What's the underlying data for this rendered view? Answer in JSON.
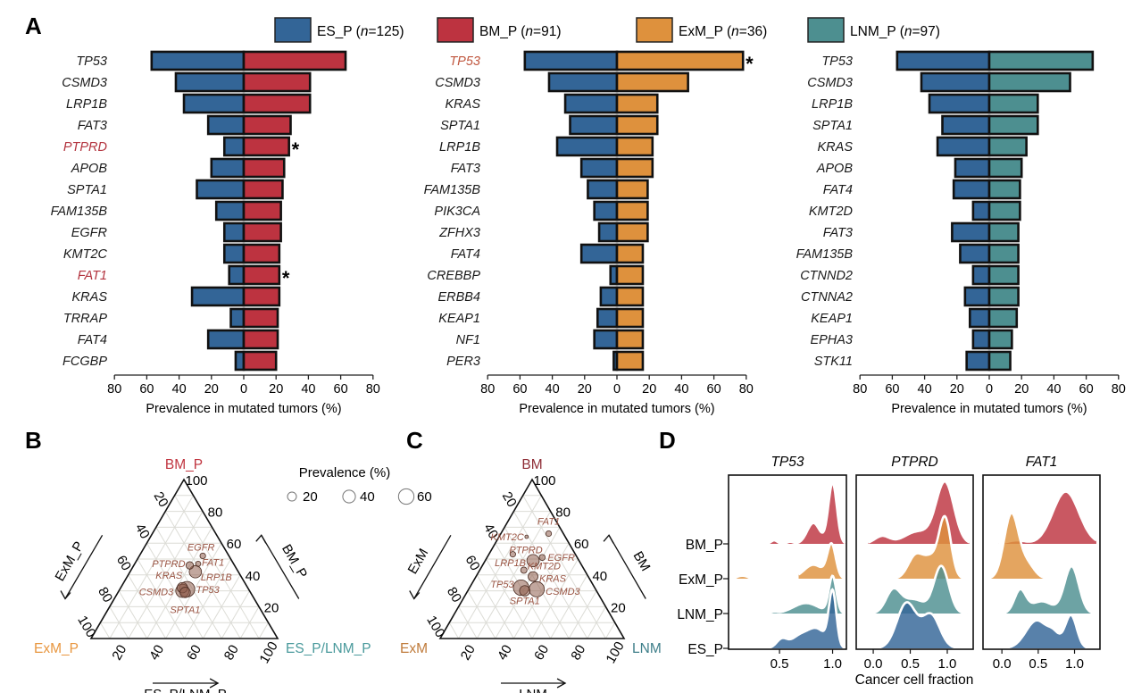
{
  "colors": {
    "ES_P": "#336597",
    "BM_P": "#BD3340",
    "ExM_P": "#DE913D",
    "LNM_P": "#4D8F90",
    "highlight": "#B3343F",
    "highlight2": "#C0573F",
    "ternary_label": "#9A5544",
    "ternary_point": "#8F5E4E"
  },
  "panel_letters": {
    "A": "A",
    "B": "B",
    "C": "C",
    "D": "D"
  },
  "legend": [
    {
      "key": "ES_P",
      "label": "ES_P (",
      "n_label": "n",
      "n_value": "=125)"
    },
    {
      "key": "BM_P",
      "label": "BM_P (",
      "n_label": "n",
      "n_value": "=91)"
    },
    {
      "key": "ExM_P",
      "label": "ExM_P (",
      "n_label": "n",
      "n_value": "=36)"
    },
    {
      "key": "LNM_P",
      "label": "LNM_P (",
      "n_label": "n",
      "n_value": "=97)"
    }
  ],
  "chart_data": [
    {
      "type": "bar",
      "orientation": "horizontal-diverging",
      "panel": "A1",
      "xlabel": "Prevalence in mutated tumors (%)",
      "xlim": [
        -80,
        80
      ],
      "xticks": [
        "80",
        "60",
        "40",
        "20",
        "0",
        "20",
        "40",
        "60",
        "80"
      ],
      "left_series": "ES_P",
      "right_series": "BM_P",
      "categories": [
        "TP53",
        "CSMD3",
        "LRP1B",
        "FAT3",
        "PTPRD",
        "APOB",
        "SPTA1",
        "FAM135B",
        "EGFR",
        "KMT2C",
        "FAT1",
        "KRAS",
        "TRRAP",
        "FAT4",
        "FCGBP"
      ],
      "left_values": [
        57,
        42,
        37,
        22,
        12,
        20,
        29,
        17,
        12,
        12,
        9,
        32,
        8,
        22,
        5
      ],
      "right_values": [
        63,
        41,
        41,
        29,
        28,
        25,
        24,
        23,
        23,
        22,
        22,
        22,
        21,
        21,
        20
      ],
      "significant": [
        "PTPRD",
        "FAT1"
      ],
      "significance_mark": "*"
    },
    {
      "type": "bar",
      "orientation": "horizontal-diverging",
      "panel": "A2",
      "xlabel": "Prevalence in mutated tumors (%)",
      "xlim": [
        -80,
        80
      ],
      "xticks": [
        "80",
        "60",
        "40",
        "20",
        "0",
        "20",
        "40",
        "60",
        "80"
      ],
      "left_series": "ES_P",
      "right_series": "ExM_P",
      "categories": [
        "TP53",
        "CSMD3",
        "KRAS",
        "SPTA1",
        "LRP1B",
        "FAT3",
        "FAM135B",
        "PIK3CA",
        "ZFHX3",
        "FAT4",
        "CREBBP",
        "ERBB4",
        "KEAP1",
        "NF1",
        "PER3"
      ],
      "left_values": [
        57,
        42,
        32,
        29,
        37,
        22,
        18,
        14,
        11,
        22,
        4,
        10,
        12,
        14,
        2
      ],
      "right_values": [
        78,
        44,
        25,
        25,
        22,
        22,
        19,
        19,
        19,
        16,
        16,
        16,
        16,
        16,
        16
      ],
      "significant": [
        "TP53"
      ],
      "significance_mark": "*"
    },
    {
      "type": "bar",
      "orientation": "horizontal-diverging",
      "panel": "A3",
      "xlabel": "Prevalence in mutated tumors (%)",
      "xlim": [
        -80,
        80
      ],
      "xticks": [
        "80",
        "60",
        "40",
        "20",
        "0",
        "20",
        "40",
        "60",
        "80"
      ],
      "left_series": "ES_P",
      "right_series": "LNM_P",
      "categories": [
        "TP53",
        "CSMD3",
        "LRP1B",
        "SPTA1",
        "KRAS",
        "APOB",
        "FAT4",
        "KMT2D",
        "FAT3",
        "FAM135B",
        "CTNND2",
        "CTNNA2",
        "KEAP1",
        "EPHA3",
        "STK11"
      ],
      "left_values": [
        57,
        42,
        37,
        29,
        32,
        21,
        22,
        10,
        23,
        18,
        10,
        15,
        12,
        10,
        14
      ],
      "right_values": [
        64,
        50,
        30,
        30,
        23,
        20,
        19,
        19,
        18,
        18,
        18,
        18,
        17,
        14,
        13
      ],
      "significant": [],
      "significance_mark": "*"
    },
    {
      "type": "scatter",
      "subtype": "ternary",
      "panel": "B",
      "vertices": {
        "top": "BM_P",
        "left": "ExM_P",
        "right": "ES_P/LNM_P"
      },
      "axis_titles": {
        "left": "ExM_P",
        "right": "BM_P",
        "bottom": "ES_P/LNM_P"
      },
      "ticks": [
        "20",
        "40",
        "60",
        "80",
        "100"
      ],
      "size_legend": {
        "title": "Prevalence (%)",
        "values": [
          20,
          40,
          60
        ],
        "labels": [
          "20",
          "40",
          "60"
        ]
      },
      "points": [
        {
          "gene": "EGFR",
          "BM": 52,
          "ExM": 14,
          "ES_LNM": 34,
          "prevalence": 8
        },
        {
          "gene": "FAT1",
          "BM": 47,
          "ExM": 19,
          "ES_LNM": 34,
          "prevalence": 7
        },
        {
          "gene": "PTPRD",
          "BM": 46,
          "ExM": 24,
          "ES_LNM": 30,
          "prevalence": 14
        },
        {
          "gene": "LRP1B",
          "BM": 42,
          "ExM": 23,
          "ES_LNM": 35,
          "prevalence": 38
        },
        {
          "gene": "KRAS",
          "BM": 32,
          "ExM": 35,
          "ES_LNM": 33,
          "prevalence": 27
        },
        {
          "gene": "CSMD3",
          "BM": 30,
          "ExM": 36,
          "ES_LNM": 34,
          "prevalence": 44
        },
        {
          "gene": "TP53",
          "BM": 31,
          "ExM": 33,
          "ES_LNM": 36,
          "prevalence": 60
        },
        {
          "gene": "SPTA1",
          "BM": 29,
          "ExM": 35,
          "ES_LNM": 36,
          "prevalence": 27
        }
      ]
    },
    {
      "type": "scatter",
      "subtype": "ternary",
      "panel": "C",
      "vertices": {
        "top": "BM",
        "left": "ExM",
        "right": "LNM"
      },
      "axis_titles": {
        "left": "ExM",
        "right": "BM",
        "bottom": "LNM"
      },
      "ticks": [
        "20",
        "40",
        "60",
        "80",
        "100"
      ],
      "points": [
        {
          "gene": "FAT1",
          "BM": 66,
          "ExM": 8,
          "ES_LNM": 26,
          "prevalence": 8
        },
        {
          "gene": "KMT2C",
          "BM": 64,
          "ExM": 21,
          "ES_LNM": 15,
          "prevalence": 3
        },
        {
          "gene": "PTPRD",
          "BM": 53,
          "ExM": 34,
          "ES_LNM": 13,
          "prevalence": 8
        },
        {
          "gene": "EGFR",
          "BM": 51,
          "ExM": 19,
          "ES_LNM": 30,
          "prevalence": 9
        },
        {
          "gene": "LRP1B",
          "BM": 49,
          "ExM": 25,
          "ES_LNM": 26,
          "prevalence": 38
        },
        {
          "gene": "KMT2D",
          "BM": 43,
          "ExM": 33,
          "ES_LNM": 24,
          "prevalence": 10
        },
        {
          "gene": "KRAS",
          "BM": 39,
          "ExM": 30,
          "ES_LNM": 31,
          "prevalence": 24
        },
        {
          "gene": "CSMD3",
          "BM": 31,
          "ExM": 32,
          "ES_LNM": 37,
          "prevalence": 58
        },
        {
          "gene": "TP53",
          "BM": 32,
          "ExM": 40,
          "ES_LNM": 28,
          "prevalence": 60
        },
        {
          "gene": "SPTA1",
          "BM": 30,
          "ExM": 39,
          "ES_LNM": 31,
          "prevalence": 27
        }
      ]
    },
    {
      "type": "area",
      "subtype": "ridgeline",
      "panel": "D",
      "xlabel": "Cancer cell fraction",
      "groups": [
        "BM_P",
        "ExM_P",
        "LNM_P",
        "ES_P"
      ],
      "facets": [
        {
          "title": "TP53",
          "xlim": [
            0.02,
            1.13
          ],
          "xticks": [
            0.5,
            1.0
          ],
          "xtick_labels": [
            "0.5",
            "1.0"
          ],
          "ridges": {
            "BM_P": {
              "range": [
                0.35,
                1.12
              ],
              "peaks": [
                [
                  1.0,
                  0.04,
                  1.75
                ],
                [
                  0.82,
                  0.06,
                  0.6
                ],
                [
                  0.45,
                  0.03,
                  0.1
                ],
                [
                  0.6,
                  0.03,
                  0.06
                ]
              ]
            },
            "ExM_P": {
              "range": [
                0.68,
                1.12
              ],
              "peaks": [
                [
                  0.99,
                  0.04,
                  0.95
                ],
                [
                  0.82,
                  0.09,
                  0.4
                ]
              ],
              "outlier": [
                0.15,
                0.05
              ]
            },
            "LNM_P": {
              "range": [
                0.25,
                1.12
              ],
              "peaks": [
                [
                  1.0,
                  0.035,
                  1.05
                ],
                [
                  0.75,
                  0.12,
                  0.3
                ],
                [
                  0.45,
                  0.03,
                  0.04
                ]
              ]
            },
            "ES_P": {
              "range": [
                0.35,
                1.12
              ],
              "peaks": [
                [
                  1.0,
                  0.035,
                  1.55
                ],
                [
                  0.85,
                  0.09,
                  0.55
                ],
                [
                  0.52,
                  0.05,
                  0.25
                ],
                [
                  0.68,
                  0.08,
                  0.3
                ]
              ]
            }
          }
        },
        {
          "title": "PTPRD",
          "xlim": [
            -0.23,
            1.35
          ],
          "xticks": [
            0.0,
            0.5,
            1.0
          ],
          "xtick_labels": [
            "0.0",
            "0.5",
            "1.0"
          ],
          "ridges": {
            "BM_P": {
              "range": [
                -0.07,
                1.3
              ],
              "peaks": [
                [
                  0.97,
                  0.12,
                  1.75
                ],
                [
                  0.12,
                  0.1,
                  0.22
                ],
                [
                  0.6,
                  0.18,
                  0.35
                ]
              ]
            },
            "ExM_P": {
              "range": [
                0.27,
                1.3
              ],
              "peaks": [
                [
                  0.97,
                  0.08,
                  1.7
                ],
                [
                  0.57,
                  0.1,
                  0.65
                ],
                [
                  0.78,
                  0.1,
                  0.55
                ]
              ]
            },
            "LNM_P": {
              "range": [
                -0.03,
                1.27
              ],
              "peaks": [
                [
                  0.92,
                  0.1,
                  1.35
                ],
                [
                  0.27,
                  0.1,
                  0.65
                ],
                [
                  0.55,
                  0.15,
                  0.4
                ]
              ]
            },
            "ES_P": {
              "range": [
                0.0,
                1.18
              ],
              "peaks": [
                [
                  0.45,
                  0.13,
                  1.3
                ],
                [
                  0.78,
                  0.12,
                  0.95
                ]
              ]
            }
          }
        },
        {
          "title": "FAT1",
          "xlim": [
            -0.26,
            1.35
          ],
          "xticks": [
            0.0,
            0.5,
            1.0
          ],
          "xtick_labels": [
            "0.0",
            "0.5",
            "1.0"
          ],
          "ridges": {
            "BM_P": {
              "range": [
                -0.05,
                1.3
              ],
              "peaks": [
                [
                  0.88,
                  0.18,
                  1.5
                ],
                [
                  0.2,
                  0.12,
                  0.1
                ]
              ]
            },
            "ExM_P": {
              "range": [
                -0.2,
                0.65
              ],
              "peaks": [
                [
                  0.13,
                  0.1,
                  1.85
                ],
                [
                  0.35,
                  0.1,
                  0.4
                ]
              ]
            },
            "LNM_P": {
              "range": [
                -0.08,
                1.3
              ],
              "peaks": [
                [
                  0.96,
                  0.1,
                  1.35
                ],
                [
                  0.25,
                  0.08,
                  0.65
                ],
                [
                  0.55,
                  0.15,
                  0.35
                ]
              ]
            },
            "ES_P": {
              "range": [
                -0.05,
                1.25
              ],
              "peaks": [
                [
                  0.95,
                  0.08,
                  0.95
                ],
                [
                  0.48,
                  0.15,
                  0.8
                ],
                [
                  0.72,
                  0.08,
                  0.3
                ]
              ]
            }
          }
        }
      ]
    }
  ]
}
